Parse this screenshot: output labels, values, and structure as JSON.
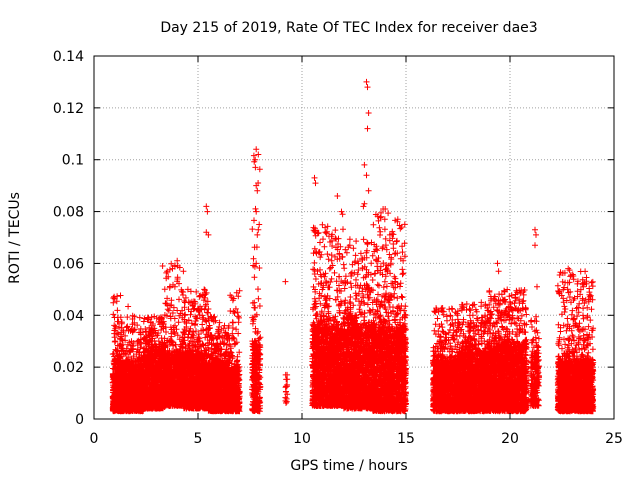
{
  "chart_data": {
    "type": "scatter",
    "title": "Day 215 of 2019, Rate Of TEC Index for receiver dae3",
    "xlabel": "GPS time / hours",
    "ylabel": "ROTI / TECUs",
    "xlim": [
      0,
      25
    ],
    "ylim": [
      0,
      0.14
    ],
    "xticks": [
      0,
      5,
      10,
      15,
      20,
      25
    ],
    "xtick_labels": [
      "0",
      "5",
      "10",
      "15",
      "20",
      "25"
    ],
    "yticks": [
      0,
      0.02,
      0.04,
      0.06,
      0.08,
      0.1,
      0.12,
      0.14
    ],
    "ytick_labels": [
      "0",
      "0.02",
      "0.04",
      "0.06",
      "0.08",
      "0.1",
      "0.12",
      "0.14"
    ],
    "grid": true,
    "marker": "+",
    "color": "#ff0000",
    "clusters": [
      {
        "x": [
          0.9,
          1.7
        ],
        "y_floor": 0.003,
        "y_dense": 0.022,
        "y_max": 0.048,
        "density": 1.0
      },
      {
        "x": [
          1.7,
          2.4
        ],
        "y_floor": 0.003,
        "y_dense": 0.02,
        "y_max": 0.04,
        "density": 0.9
      },
      {
        "x": [
          2.4,
          3.4
        ],
        "y_floor": 0.004,
        "y_dense": 0.026,
        "y_max": 0.04,
        "density": 1.0
      },
      {
        "x": [
          3.4,
          4.3
        ],
        "y_floor": 0.005,
        "y_dense": 0.025,
        "y_max": 0.06,
        "density": 0.9
      },
      {
        "x": [
          4.3,
          5.5
        ],
        "y_floor": 0.004,
        "y_dense": 0.025,
        "y_max": 0.05,
        "density": 1.0
      },
      {
        "x": [
          5.5,
          6.5
        ],
        "y_floor": 0.003,
        "y_dense": 0.022,
        "y_max": 0.04,
        "density": 0.95
      },
      {
        "x": [
          6.5,
          7.0
        ],
        "y_floor": 0.003,
        "y_dense": 0.02,
        "y_max": 0.05,
        "density": 0.8
      },
      {
        "x": [
          7.6,
          8.0
        ],
        "y_floor": 0.003,
        "y_dense": 0.03,
        "y_max": 0.105,
        "density": 0.7
      },
      {
        "x": [
          9.2,
          9.3
        ],
        "y_floor": 0.006,
        "y_dense": 0.017,
        "y_max": 0.017,
        "density": 0.15
      },
      {
        "x": [
          10.5,
          12.0
        ],
        "y_floor": 0.005,
        "y_dense": 0.035,
        "y_max": 0.075,
        "density": 1.0
      },
      {
        "x": [
          12.0,
          13.4
        ],
        "y_floor": 0.004,
        "y_dense": 0.035,
        "y_max": 0.07,
        "density": 1.0
      },
      {
        "x": [
          13.4,
          15.0
        ],
        "y_floor": 0.003,
        "y_dense": 0.035,
        "y_max": 0.08,
        "density": 1.0
      },
      {
        "x": [
          16.3,
          17.5
        ],
        "y_floor": 0.003,
        "y_dense": 0.022,
        "y_max": 0.043,
        "density": 0.9
      },
      {
        "x": [
          17.5,
          19.0
        ],
        "y_floor": 0.003,
        "y_dense": 0.025,
        "y_max": 0.045,
        "density": 1.0
      },
      {
        "x": [
          19.0,
          20.8
        ],
        "y_floor": 0.003,
        "y_dense": 0.028,
        "y_max": 0.05,
        "density": 1.0
      },
      {
        "x": [
          21.0,
          21.4
        ],
        "y_floor": 0.005,
        "y_dense": 0.025,
        "y_max": 0.04,
        "density": 0.5
      },
      {
        "x": [
          22.3,
          24.0
        ],
        "y_floor": 0.003,
        "y_dense": 0.022,
        "y_max": 0.058,
        "density": 1.0
      }
    ],
    "outliers": [
      {
        "x": 3.3,
        "y": 0.059
      },
      {
        "x": 4.0,
        "y": 0.061
      },
      {
        "x": 4.3,
        "y": 0.057
      },
      {
        "x": 5.4,
        "y": 0.082
      },
      {
        "x": 5.45,
        "y": 0.08
      },
      {
        "x": 5.4,
        "y": 0.072
      },
      {
        "x": 5.5,
        "y": 0.071
      },
      {
        "x": 5.3,
        "y": 0.05
      },
      {
        "x": 7.8,
        "y": 0.104
      },
      {
        "x": 7.9,
        "y": 0.102
      },
      {
        "x": 7.75,
        "y": 0.1
      },
      {
        "x": 7.8,
        "y": 0.09
      },
      {
        "x": 7.85,
        "y": 0.088
      },
      {
        "x": 7.8,
        "y": 0.08
      },
      {
        "x": 7.9,
        "y": 0.073
      },
      {
        "x": 7.85,
        "y": 0.071
      },
      {
        "x": 7.8,
        "y": 0.06
      },
      {
        "x": 9.2,
        "y": 0.053
      },
      {
        "x": 10.6,
        "y": 0.093
      },
      {
        "x": 10.65,
        "y": 0.091
      },
      {
        "x": 11.7,
        "y": 0.086
      },
      {
        "x": 11.9,
        "y": 0.08
      },
      {
        "x": 11.95,
        "y": 0.079
      },
      {
        "x": 13.1,
        "y": 0.13
      },
      {
        "x": 13.15,
        "y": 0.128
      },
      {
        "x": 13.2,
        "y": 0.118
      },
      {
        "x": 13.15,
        "y": 0.112
      },
      {
        "x": 13.0,
        "y": 0.098
      },
      {
        "x": 13.1,
        "y": 0.094
      },
      {
        "x": 13.0,
        "y": 0.083
      },
      {
        "x": 12.95,
        "y": 0.082
      },
      {
        "x": 13.2,
        "y": 0.088
      },
      {
        "x": 13.9,
        "y": 0.081
      },
      {
        "x": 14.0,
        "y": 0.081
      },
      {
        "x": 13.8,
        "y": 0.078
      },
      {
        "x": 19.4,
        "y": 0.06
      },
      {
        "x": 19.45,
        "y": 0.057
      },
      {
        "x": 21.2,
        "y": 0.073
      },
      {
        "x": 21.25,
        "y": 0.071
      },
      {
        "x": 21.2,
        "y": 0.067
      },
      {
        "x": 21.3,
        "y": 0.051
      },
      {
        "x": 22.8,
        "y": 0.058
      },
      {
        "x": 22.9,
        "y": 0.055
      }
    ]
  }
}
